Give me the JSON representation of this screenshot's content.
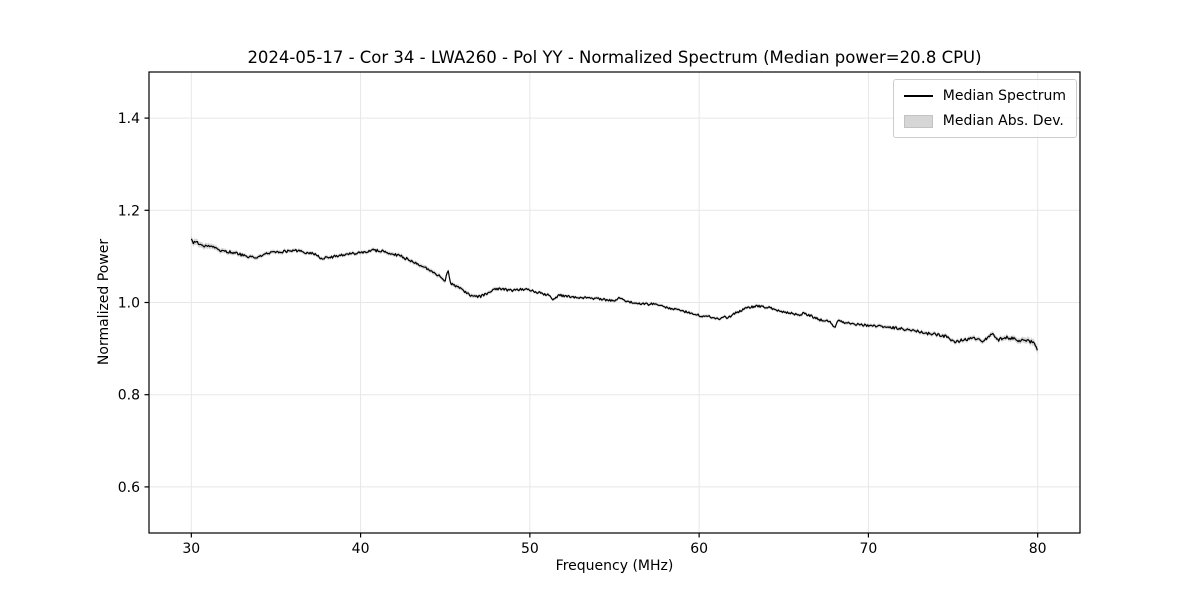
{
  "chart_data": {
    "type": "line",
    "title": "2024-05-17 - Cor 34 - LWA260 - Pol YY - Normalized Spectrum (Median power=20.8 CPU)",
    "xlabel": "Frequency (MHz)",
    "ylabel": "Normalized Power",
    "xlim": [
      27.5,
      82.5
    ],
    "ylim": [
      0.5,
      1.5
    ],
    "x_ticks": [
      30,
      40,
      50,
      60,
      70,
      80
    ],
    "y_ticks": [
      0.6,
      0.8,
      1.0,
      1.2,
      1.4
    ],
    "grid": true,
    "legend_position": "upper right",
    "legend": {
      "line_label": "Median Spectrum",
      "band_label": "Median Abs. Dev."
    },
    "colors": {
      "line": "#000000",
      "band": "rgba(140,140,140,0.35)",
      "grid": "#e7e7e7",
      "spine": "#000000",
      "text": "#000000"
    },
    "series": [
      {
        "name": "Median Spectrum",
        "points": [
          [
            30.0,
            1.135
          ],
          [
            30.15,
            1.128
          ],
          [
            30.3,
            1.133
          ],
          [
            30.5,
            1.124
          ],
          [
            30.8,
            1.122
          ],
          [
            31.2,
            1.12
          ],
          [
            31.8,
            1.112
          ],
          [
            32.4,
            1.109
          ],
          [
            33.0,
            1.103
          ],
          [
            33.6,
            1.098
          ],
          [
            34.0,
            1.1
          ],
          [
            34.4,
            1.105
          ],
          [
            35.0,
            1.109
          ],
          [
            35.6,
            1.111
          ],
          [
            36.1,
            1.113
          ],
          [
            36.7,
            1.109
          ],
          [
            37.3,
            1.105
          ],
          [
            37.7,
            1.096
          ],
          [
            38.2,
            1.098
          ],
          [
            38.8,
            1.103
          ],
          [
            39.4,
            1.105
          ],
          [
            40.0,
            1.109
          ],
          [
            40.7,
            1.113
          ],
          [
            41.2,
            1.112
          ],
          [
            41.8,
            1.106
          ],
          [
            42.4,
            1.101
          ],
          [
            43.0,
            1.089
          ],
          [
            43.6,
            1.079
          ],
          [
            44.2,
            1.069
          ],
          [
            44.7,
            1.056
          ],
          [
            45.0,
            1.048
          ],
          [
            45.15,
            1.072
          ],
          [
            45.3,
            1.042
          ],
          [
            45.8,
            1.032
          ],
          [
            46.2,
            1.022
          ],
          [
            46.6,
            1.013
          ],
          [
            47.0,
            1.012
          ],
          [
            47.5,
            1.02
          ],
          [
            48.0,
            1.03
          ],
          [
            48.5,
            1.028
          ],
          [
            49.0,
            1.026
          ],
          [
            49.5,
            1.029
          ],
          [
            50.0,
            1.027
          ],
          [
            50.6,
            1.021
          ],
          [
            51.1,
            1.016
          ],
          [
            51.4,
            1.007
          ],
          [
            51.7,
            1.016
          ],
          [
            52.3,
            1.013
          ],
          [
            52.9,
            1.011
          ],
          [
            53.7,
            1.009
          ],
          [
            54.5,
            1.006
          ],
          [
            55.0,
            1.004
          ],
          [
            55.3,
            1.012
          ],
          [
            55.8,
            1.001
          ],
          [
            56.4,
            0.998
          ],
          [
            57.0,
            0.996
          ],
          [
            57.4,
            0.999
          ],
          [
            57.8,
            0.993
          ],
          [
            58.2,
            0.987
          ],
          [
            58.6,
            0.985
          ],
          [
            59.0,
            0.982
          ],
          [
            59.5,
            0.977
          ],
          [
            60.0,
            0.972
          ],
          [
            60.6,
            0.969
          ],
          [
            61.2,
            0.963
          ],
          [
            61.45,
            0.969
          ],
          [
            61.7,
            0.967
          ],
          [
            62.2,
            0.978
          ],
          [
            62.9,
            0.989
          ],
          [
            63.4,
            0.992
          ],
          [
            63.8,
            0.991
          ],
          [
            64.2,
            0.988
          ],
          [
            64.7,
            0.982
          ],
          [
            65.3,
            0.978
          ],
          [
            65.9,
            0.972
          ],
          [
            66.2,
            0.977
          ],
          [
            66.6,
            0.971
          ],
          [
            67.1,
            0.963
          ],
          [
            67.7,
            0.959
          ],
          [
            68.0,
            0.945
          ],
          [
            68.2,
            0.96
          ],
          [
            68.8,
            0.955
          ],
          [
            69.4,
            0.952
          ],
          [
            70.0,
            0.95
          ],
          [
            70.6,
            0.948
          ],
          [
            71.2,
            0.946
          ],
          [
            71.8,
            0.944
          ],
          [
            72.4,
            0.94
          ],
          [
            73.0,
            0.937
          ],
          [
            73.6,
            0.932
          ],
          [
            74.2,
            0.93
          ],
          [
            74.7,
            0.925
          ],
          [
            75.1,
            0.913
          ],
          [
            75.6,
            0.919
          ],
          [
            76.2,
            0.923
          ],
          [
            76.8,
            0.916
          ],
          [
            77.3,
            0.931
          ],
          [
            77.7,
            0.919
          ],
          [
            78.0,
            0.925
          ],
          [
            78.5,
            0.922
          ],
          [
            78.9,
            0.916
          ],
          [
            79.2,
            0.921
          ],
          [
            79.6,
            0.915
          ],
          [
            79.85,
            0.908
          ],
          [
            80.0,
            0.896
          ]
        ]
      }
    ],
    "band": {
      "name": "Median Abs. Dev.",
      "halfwidth_points": [
        [
          30,
          0.007
        ],
        [
          32,
          0.005
        ],
        [
          36,
          0.004
        ],
        [
          40,
          0.004
        ],
        [
          45,
          0.005
        ],
        [
          50,
          0.0035
        ],
        [
          55,
          0.0035
        ],
        [
          60,
          0.0035
        ],
        [
          65,
          0.0035
        ],
        [
          70,
          0.004
        ],
        [
          74,
          0.0045
        ],
        [
          77,
          0.005
        ],
        [
          79,
          0.006
        ],
        [
          80,
          0.008
        ]
      ]
    },
    "noise": {
      "seed": 20240517,
      "step_mhz": 0.06,
      "amplitude_points": [
        [
          30,
          0.005
        ],
        [
          30.6,
          0.0035
        ],
        [
          32,
          0.003
        ],
        [
          40,
          0.003
        ],
        [
          46,
          0.0028
        ],
        [
          55,
          0.0025
        ],
        [
          65,
          0.0025
        ],
        [
          72,
          0.0028
        ],
        [
          76,
          0.0035
        ],
        [
          80,
          0.004
        ]
      ]
    }
  }
}
